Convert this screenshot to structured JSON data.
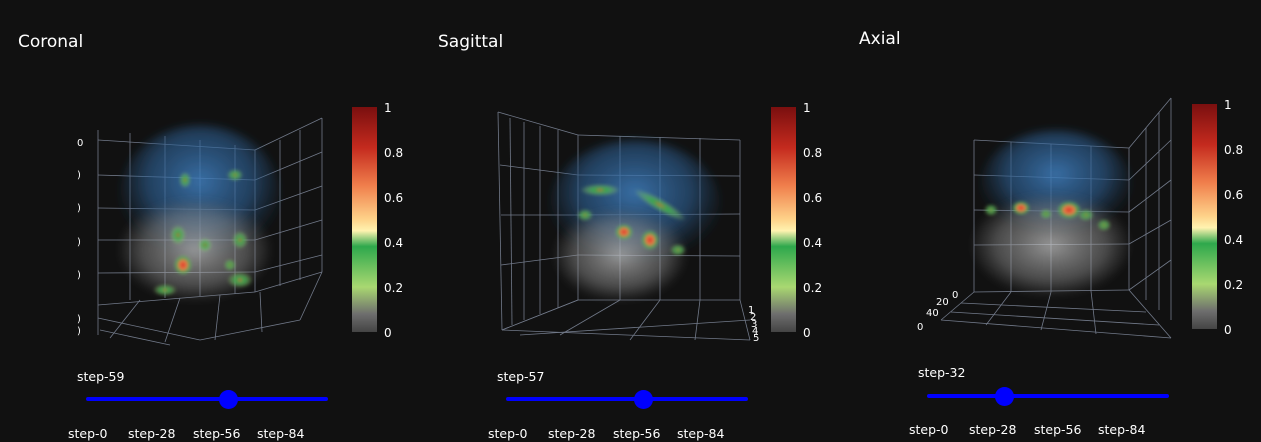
{
  "panels": [
    {
      "title": "Coronal",
      "slider": {
        "current_label": "step-59",
        "current_step": 59,
        "max_step": 100
      },
      "axis_ticks": [
        "0",
        ")",
        ")",
        ")",
        ")",
        ")",
        ")"
      ],
      "axis2_ticks": []
    },
    {
      "title": "Sagittal",
      "slider": {
        "current_label": "step-57",
        "current_step": 57,
        "max_step": 100
      },
      "axis_ticks": [],
      "axis2_ticks": [
        "1",
        "2",
        "3",
        "4",
        "5"
      ]
    },
    {
      "title": "Axial",
      "slider": {
        "current_label": "step-32",
        "current_step": 32,
        "max_step": 100
      },
      "axis_ticks": [
        "0",
        "20",
        "40",
        "0"
      ],
      "axis2_ticks": []
    }
  ],
  "slider_steps": [
    "step-0",
    "step-28",
    "step-56",
    "step-84"
  ],
  "colorbar": {
    "ticks": [
      "1",
      "0.8",
      "0.6",
      "0.4",
      "0.2",
      "0"
    ],
    "colors": [
      "#7a0f0f",
      "#c42a1e",
      "#f07f4c",
      "#fed38a",
      "#fff3b0",
      "#2ea84c",
      "#a9d871",
      "#6e6e6e",
      "#444444"
    ]
  },
  "chart_data": [
    {
      "type": "heatmap",
      "title": "Coronal",
      "colorbar_range": [
        0,
        1
      ],
      "slider": {
        "steps": [
          "step-0",
          "step-28",
          "step-56",
          "step-84"
        ],
        "current": "step-59"
      }
    },
    {
      "type": "heatmap",
      "title": "Sagittal",
      "colorbar_range": [
        0,
        1
      ],
      "slider": {
        "steps": [
          "step-0",
          "step-28",
          "step-56",
          "step-84"
        ],
        "current": "step-57"
      }
    },
    {
      "type": "heatmap",
      "title": "Axial",
      "colorbar_range": [
        0,
        1
      ],
      "slider": {
        "steps": [
          "step-0",
          "step-28",
          "step-56",
          "step-84"
        ],
        "current": "step-32"
      }
    }
  ]
}
